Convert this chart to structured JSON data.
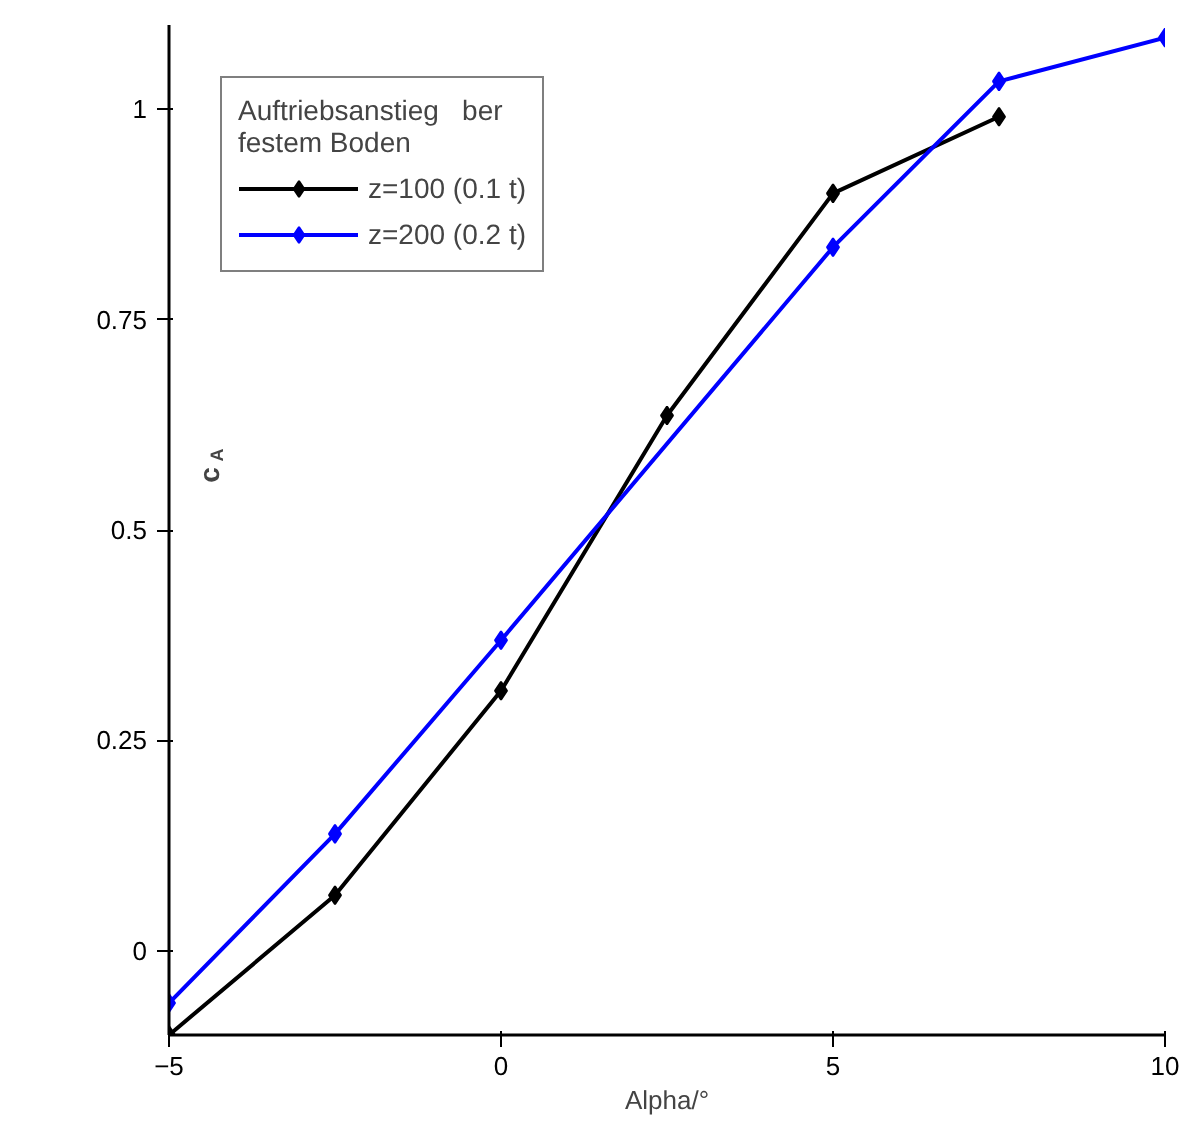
{
  "chart_data": {
    "type": "line",
    "xlabel": "Alpha/°",
    "ylabel": "c$_{A}$",
    "legend_title": "Auftriebsanstieg   ber\nfestem Boden",
    "x": [
      -5,
      -2.5,
      0,
      2.5,
      5,
      7.5
    ],
    "series": [
      {
        "name": "z=100 (0.1 t)",
        "color": "#000000",
        "values": [
          -0.1,
          0.066,
          0.309,
          0.636,
          0.9,
          0.991
        ]
      },
      {
        "name": "z=200 (0.2 t)",
        "color": "#0000ff",
        "x": [
          -5,
          -2.5,
          0,
          5,
          7.5,
          10
        ],
        "values": [
          -0.062,
          0.139,
          0.369,
          0.836,
          1.033,
          1.085
        ]
      }
    ],
    "xlim": [
      -5,
      10
    ],
    "ylim": [
      -0.1,
      1.1
    ],
    "xticks": [
      -5,
      0,
      5,
      10
    ],
    "yticks": [
      0,
      0.25,
      0.5,
      0.75,
      1
    ],
    "grid": false,
    "legend": "top left",
    "marker": "diamond",
    "line_style": "solid"
  }
}
